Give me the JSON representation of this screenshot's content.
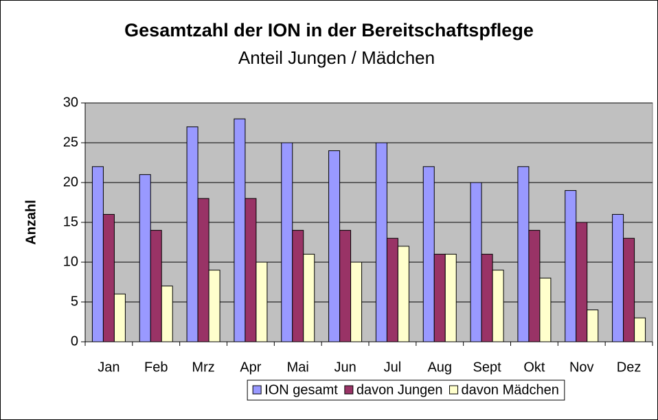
{
  "chart_data": {
    "type": "bar",
    "title": "Gesamtzahl der ION in der Bereitschaftspflege",
    "subtitle": "Anteil Jungen / Mädchen",
    "y_label": "Anzahl",
    "categories": [
      "Jan",
      "Feb",
      "Mrz",
      "Apr",
      "Mai",
      "Jun",
      "Jul",
      "Aug",
      "Sept",
      "Okt",
      "Nov",
      "Dez"
    ],
    "series": [
      {
        "name": "ION gesamt",
        "color": "#9999ff",
        "values": [
          22,
          21,
          27,
          28,
          25,
          24,
          25,
          22,
          20,
          22,
          19,
          16
        ]
      },
      {
        "name": "davon Jungen",
        "color": "#993366",
        "values": [
          16,
          14,
          18,
          18,
          14,
          14,
          13,
          11,
          11,
          14,
          15,
          13
        ]
      },
      {
        "name": "davon Mädchen",
        "color": "#ffffcc",
        "values": [
          6,
          7,
          9,
          10,
          11,
          10,
          12,
          11,
          9,
          8,
          4,
          3
        ]
      }
    ],
    "ylim": [
      0,
      30
    ],
    "yticks": [
      0,
      5,
      10,
      15,
      20,
      25,
      30
    ],
    "grid": true,
    "legend": "bottom"
  }
}
